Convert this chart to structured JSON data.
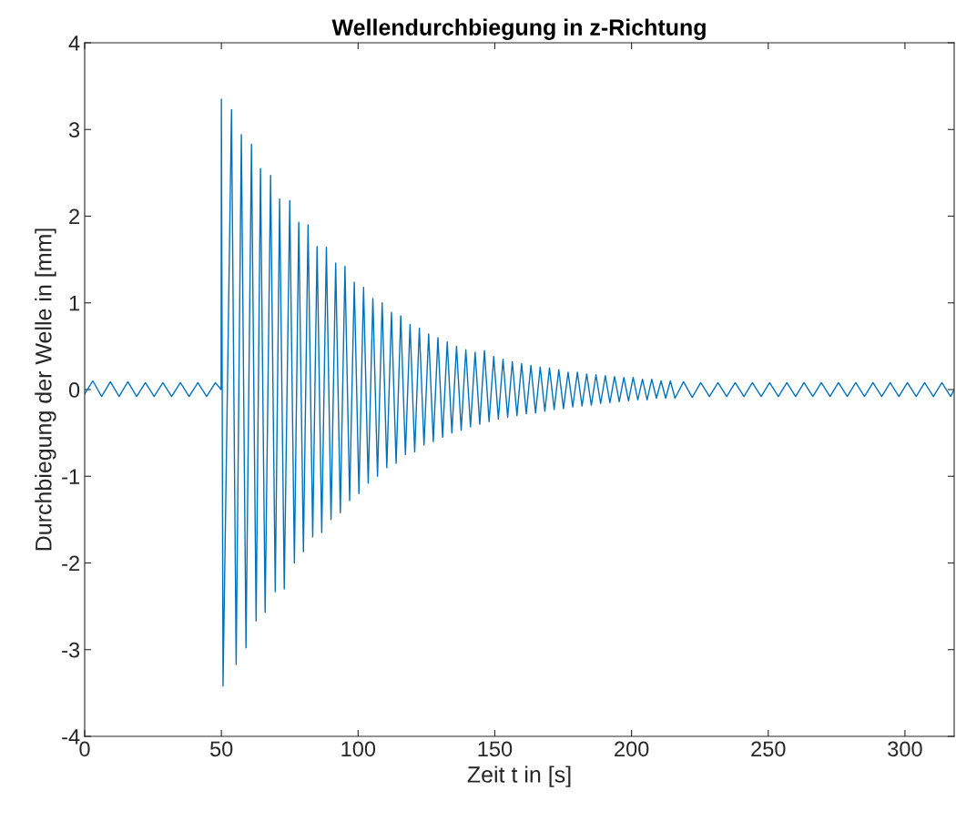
{
  "chart_data": {
    "type": "line",
    "title": "Wellendurchbiegung in z-Richtung",
    "xlabel": "Zeit t in [s]",
    "ylabel": "Durchbiegung der Welle in [mm]",
    "xlim": [
      0,
      318
    ],
    "ylim": [
      -4,
      4
    ],
    "xticks": [
      0,
      50,
      100,
      150,
      200,
      250,
      300
    ],
    "yticks": [
      -4,
      -3,
      -2,
      -1,
      0,
      1,
      2,
      3,
      4
    ],
    "grid": false,
    "legend": false,
    "marker": "none",
    "line_style": "solid",
    "series": [
      {
        "color": "#0072bd",
        "x": [
          0,
          3,
          6.2,
          9.4,
          12.6,
          15.8,
          19,
          22.2,
          25.4,
          28.6,
          31.8,
          35,
          38.2,
          41.4,
          44.6,
          47.8,
          49.9,
          50.0,
          50.6,
          53.7,
          55.4,
          57.3,
          59.0,
          61.0,
          62.7,
          64.3,
          66.0,
          68.0,
          69.7,
          71.3,
          73.0,
          75.0,
          76.7,
          78.3,
          80.0,
          81.7,
          83.4,
          85.0,
          86.7,
          88.4,
          90.1,
          91.8,
          93.5,
          95.2,
          96.9,
          98.6,
          100.3,
          102.0,
          103.7,
          105.4,
          107.1,
          108.8,
          110.5,
          112.2,
          113.9,
          115.6,
          117.3,
          119.0,
          120.7,
          122.4,
          124.1,
          125.8,
          127.5,
          129.2,
          130.9,
          132.6,
          134.3,
          136.0,
          137.7,
          139.4,
          141.1,
          142.8,
          144.5,
          146.2,
          147.9,
          149.6,
          151.3,
          153.0,
          154.7,
          156.4,
          158.1,
          159.8,
          161.5,
          163.2,
          164.9,
          166.6,
          168.3,
          170.0,
          171.7,
          173.4,
          175.1,
          176.8,
          178.5,
          180.2,
          181.9,
          183.6,
          185.3,
          187.0,
          188.7,
          190.4,
          192.1,
          193.8,
          195.5,
          197.2,
          198.9,
          200.6,
          202.3,
          204.0,
          205.7,
          207.4,
          209.1,
          210.8,
          212.5,
          214.2,
          215.9,
          219.0,
          222.2,
          225.3,
          228.5,
          231.6,
          234.8,
          237.9,
          241.1,
          244.2,
          247.4,
          250.5,
          253.7,
          256.8,
          260.0,
          263.1,
          266.3,
          269.4,
          272.6,
          275.7,
          278.9,
          282.0,
          285.2,
          288.3,
          291.5,
          294.6,
          297.8,
          300.9,
          304.1,
          307.2,
          310.4,
          313.5,
          316.7,
          318
        ],
        "values": [
          -0.05,
          0.1,
          -0.08,
          0.09,
          -0.08,
          0.09,
          -0.08,
          0.08,
          -0.08,
          0.08,
          -0.08,
          0.08,
          -0.08,
          0.08,
          -0.08,
          0.08,
          0,
          3.35,
          -3.42,
          3.23,
          -3.17,
          2.94,
          -2.98,
          2.83,
          -2.67,
          2.55,
          -2.57,
          2.47,
          -2.33,
          2.2,
          -2.3,
          2.18,
          -2.0,
          1.93,
          -1.87,
          1.9,
          -1.7,
          1.65,
          -1.65,
          1.64,
          -1.5,
          1.46,
          -1.42,
          1.42,
          -1.28,
          1.24,
          -1.2,
          1.18,
          -1.08,
          1.05,
          -1.0,
          1.0,
          -0.9,
          0.89,
          -0.85,
          0.85,
          -0.75,
          0.75,
          -0.72,
          0.71,
          -0.64,
          0.64,
          -0.6,
          0.6,
          -0.55,
          0.55,
          -0.5,
          0.5,
          -0.47,
          0.46,
          -0.43,
          0.43,
          -0.4,
          0.45,
          -0.37,
          0.38,
          -0.34,
          0.35,
          -0.32,
          0.32,
          -0.3,
          0.3,
          -0.28,
          0.28,
          -0.27,
          0.26,
          -0.25,
          0.25,
          -0.23,
          0.23,
          -0.22,
          0.2,
          -0.2,
          0.2,
          -0.19,
          0.18,
          -0.18,
          0.17,
          -0.16,
          0.16,
          -0.15,
          0.15,
          -0.14,
          0.14,
          -0.13,
          0.14,
          -0.12,
          0.12,
          -0.12,
          0.12,
          -0.1,
          0.1,
          -0.1,
          0.1,
          -0.1,
          0.09,
          -0.09,
          0.08,
          -0.08,
          0.08,
          -0.08,
          0.08,
          -0.08,
          0.08,
          -0.08,
          0.08,
          -0.08,
          0.08,
          -0.08,
          0.08,
          -0.08,
          0.08,
          -0.08,
          0.08,
          -0.08,
          0.08,
          -0.08,
          0.08,
          -0.08,
          0.08,
          -0.08,
          0.08,
          -0.08,
          0.08,
          -0.08,
          0.08,
          -0.08,
          0
        ]
      }
    ]
  }
}
